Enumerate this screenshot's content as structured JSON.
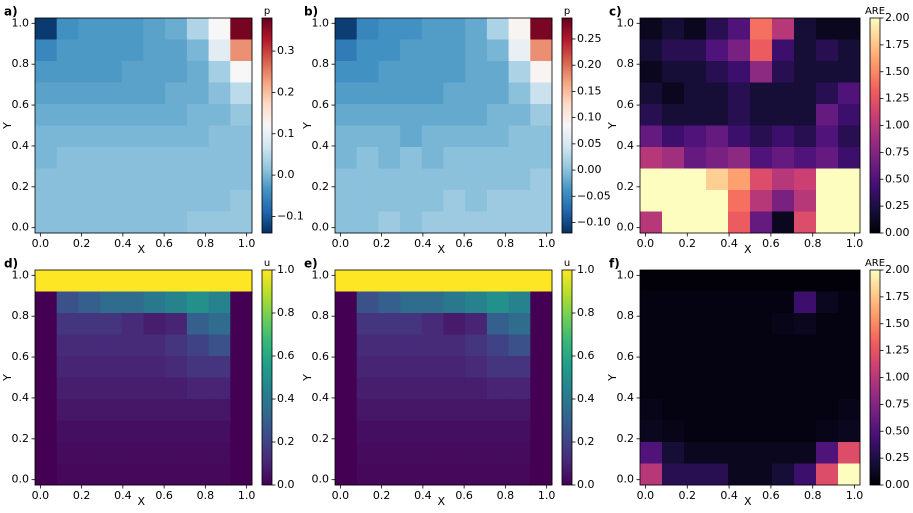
{
  "chart_data": [
    {
      "type": "heatmap",
      "label": "a)",
      "x_label": "X",
      "y_label": "Y",
      "xlim": [
        -0.026,
        1.026
      ],
      "ylim": [
        -0.026,
        1.026
      ],
      "xticks": [
        {
          "value": 0,
          "label": "0.0"
        },
        0.2,
        0.4,
        0.6,
        0.8,
        {
          "value": 1,
          "label": "1.0"
        }
      ],
      "yticks": [
        {
          "value": 0,
          "label": "0.0"
        },
        0.2,
        0.4,
        0.6,
        0.8,
        {
          "value": 1,
          "label": "1.0"
        }
      ],
      "colormap": [
        "#053061",
        "#2166ac",
        "#4393c3",
        "#92c5de",
        "#d1e5f0",
        "#f7f7f7",
        "#fddbc7",
        "#f4a582",
        "#d6604d",
        "#b2182b",
        "#67001f"
      ],
      "colorbar": {
        "label": "p",
        "lim": [
          -0.14,
          0.38
        ],
        "ticks": [
          {
            "value": -0.1,
            "label": "−0.1"
          },
          {
            "value": 0,
            "label": "0.0"
          },
          0.1,
          0.2,
          0.3
        ]
      },
      "z": [
        [
          -0.13,
          -0.04,
          -0.03,
          -0.03,
          -0.03,
          -0.02,
          -0.01,
          0.04,
          0.12,
          0.37
        ],
        [
          -0.05,
          -0.03,
          -0.03,
          -0.03,
          -0.03,
          -0.02,
          -0.02,
          0.0,
          0.09,
          0.24
        ],
        [
          -0.03,
          -0.03,
          -0.03,
          -0.03,
          -0.02,
          -0.02,
          -0.02,
          -0.01,
          0.03,
          0.12
        ],
        [
          -0.02,
          -0.02,
          -0.02,
          -0.02,
          -0.02,
          -0.02,
          -0.01,
          -0.01,
          0.01,
          0.05
        ],
        [
          -0.01,
          -0.01,
          -0.01,
          -0.01,
          -0.01,
          -0.01,
          -0.01,
          0.0,
          0.0,
          0.02
        ],
        [
          0.0,
          0.0,
          0.0,
          0.0,
          0.0,
          0.0,
          0.0,
          0.0,
          0.01,
          0.01
        ],
        [
          0.0,
          0.01,
          0.01,
          0.01,
          0.01,
          0.01,
          0.01,
          0.01,
          0.01,
          0.01
        ],
        [
          0.01,
          0.01,
          0.01,
          0.01,
          0.01,
          0.01,
          0.01,
          0.01,
          0.01,
          0.01
        ],
        [
          0.01,
          0.01,
          0.01,
          0.01,
          0.01,
          0.01,
          0.01,
          0.01,
          0.01,
          0.02
        ],
        [
          0.01,
          0.01,
          0.01,
          0.01,
          0.01,
          0.01,
          0.01,
          0.02,
          0.02,
          0.02
        ]
      ]
    },
    {
      "type": "heatmap",
      "label": "b)",
      "x_label": "X",
      "y_label": "Y",
      "xlim": [
        -0.026,
        1.026
      ],
      "ylim": [
        -0.026,
        1.026
      ],
      "xticks": [
        {
          "value": 0,
          "label": "0.0"
        },
        0.2,
        0.4,
        0.6,
        0.8,
        {
          "value": 1,
          "label": "1.0"
        }
      ],
      "yticks": [
        {
          "value": 0,
          "label": "0.0"
        },
        0.2,
        0.4,
        0.6,
        0.8,
        {
          "value": 1,
          "label": "1.0"
        }
      ],
      "colormap": [
        "#053061",
        "#2166ac",
        "#4393c3",
        "#92c5de",
        "#d1e5f0",
        "#f7f7f7",
        "#fddbc7",
        "#f4a582",
        "#d6604d",
        "#b2182b",
        "#67001f"
      ],
      "colorbar": {
        "label": "p",
        "lim": [
          -0.12,
          0.29
        ],
        "ticks": [
          {
            "value": -0.1,
            "label": "−0.10"
          },
          {
            "value": -0.05,
            "label": "−0.05"
          },
          {
            "value": 0,
            "label": "0.00"
          },
          0.05,
          {
            "value": 0.1,
            "label": "0.10"
          },
          0.15,
          {
            "value": 0.2,
            "label": "0.20"
          },
          0.25
        ]
      },
      "z": [
        [
          -0.11,
          -0.05,
          -0.04,
          -0.04,
          -0.03,
          -0.03,
          -0.02,
          0.02,
          0.09,
          0.28
        ],
        [
          -0.06,
          -0.04,
          -0.04,
          -0.03,
          -0.03,
          -0.03,
          -0.02,
          -0.01,
          0.07,
          0.18
        ],
        [
          -0.04,
          -0.04,
          -0.03,
          -0.03,
          -0.03,
          -0.03,
          -0.02,
          -0.02,
          0.02,
          0.09
        ],
        [
          -0.03,
          -0.03,
          -0.03,
          -0.03,
          -0.03,
          -0.02,
          -0.02,
          -0.02,
          0.0,
          0.04
        ],
        [
          -0.02,
          -0.02,
          -0.02,
          -0.02,
          -0.02,
          -0.02,
          -0.02,
          -0.01,
          -0.01,
          0.01
        ],
        [
          -0.01,
          -0.01,
          -0.01,
          -0.02,
          -0.01,
          -0.01,
          -0.01,
          -0.01,
          0.0,
          0.0
        ],
        [
          -0.01,
          0.0,
          -0.01,
          0.0,
          -0.01,
          0.0,
          0.0,
          0.0,
          0.0,
          0.0
        ],
        [
          0.0,
          0.0,
          0.0,
          0.0,
          0.0,
          0.0,
          0.0,
          0.0,
          0.0,
          0.01
        ],
        [
          0.0,
          0.0,
          0.0,
          0.0,
          0.0,
          0.01,
          0.0,
          0.01,
          0.01,
          0.01
        ],
        [
          0.0,
          0.0,
          0.01,
          0.0,
          0.01,
          0.01,
          0.01,
          0.01,
          0.01,
          0.01
        ]
      ]
    },
    {
      "type": "heatmap",
      "label": "c)",
      "x_label": "X",
      "y_label": "Y",
      "xlim": [
        -0.026,
        1.026
      ],
      "ylim": [
        -0.026,
        1.026
      ],
      "xticks": [
        {
          "value": 0,
          "label": "0.0"
        },
        0.2,
        0.4,
        0.6,
        0.8,
        {
          "value": 1,
          "label": "1.0"
        }
      ],
      "yticks": [
        {
          "value": 0,
          "label": "0.0"
        },
        0.2,
        0.4,
        0.6,
        0.8,
        {
          "value": 1,
          "label": "1.0"
        }
      ],
      "colormap": [
        "#000004",
        "#180f3d",
        "#440f76",
        "#721f81",
        "#9e2f7f",
        "#cd4071",
        "#f1605d",
        "#fd9668",
        "#feca8d",
        "#fcfdbf"
      ],
      "colorbar": {
        "label": "ARE",
        "lim": [
          0,
          2
        ],
        "ticks": [
          {
            "value": 0,
            "label": "0.00"
          },
          0.25,
          {
            "value": 0.5,
            "label": "0.50"
          },
          0.75,
          {
            "value": 1,
            "label": "1.00"
          },
          1.25,
          {
            "value": 1.5,
            "label": "1.50"
          },
          1.75,
          {
            "value": 2,
            "label": "2.00"
          }
        ]
      },
      "z": [
        [
          0.1,
          0.2,
          0.1,
          0.3,
          0.5,
          1.4,
          1.0,
          0.2,
          0.1,
          0.1
        ],
        [
          0.2,
          0.3,
          0.3,
          0.5,
          0.7,
          1.3,
          0.4,
          0.2,
          0.3,
          0.2
        ],
        [
          0.1,
          0.2,
          0.2,
          0.3,
          0.4,
          0.8,
          0.3,
          0.2,
          0.2,
          0.2
        ],
        [
          0.2,
          0.1,
          0.2,
          0.2,
          0.3,
          0.2,
          0.2,
          0.2,
          0.3,
          0.5
        ],
        [
          0.3,
          0.2,
          0.2,
          0.2,
          0.3,
          0.2,
          0.2,
          0.2,
          0.6,
          0.4
        ],
        [
          0.6,
          0.4,
          0.5,
          0.6,
          0.4,
          0.3,
          0.4,
          0.3,
          0.5,
          0.3
        ],
        [
          1.0,
          0.9,
          0.6,
          0.7,
          0.8,
          0.5,
          0.6,
          0.5,
          0.6,
          0.4
        ],
        [
          2.0,
          2.0,
          2.0,
          1.8,
          1.6,
          1.2,
          1.0,
          1.1,
          2.0,
          2.0
        ],
        [
          2.0,
          2.0,
          2.0,
          2.0,
          1.4,
          1.0,
          0.7,
          1.0,
          2.0,
          2.0
        ],
        [
          1.0,
          2.0,
          2.0,
          2.0,
          1.3,
          0.6,
          0.1,
          1.2,
          2.0,
          2.0
        ]
      ]
    },
    {
      "type": "heatmap",
      "label": "d)",
      "x_label": "X",
      "y_label": "Y",
      "xlim": [
        -0.026,
        1.026
      ],
      "ylim": [
        -0.026,
        1.026
      ],
      "xticks": [
        {
          "value": 0,
          "label": "0.0"
        },
        0.2,
        0.4,
        0.6,
        0.8,
        {
          "value": 1,
          "label": "1.0"
        }
      ],
      "yticks": [
        {
          "value": 0,
          "label": "0.0"
        },
        0.2,
        0.4,
        0.6,
        0.8,
        {
          "value": 1,
          "label": "1.0"
        }
      ],
      "colormap": [
        "#440154",
        "#482878",
        "#3e4989",
        "#31688e",
        "#26828e",
        "#1f9e89",
        "#35b779",
        "#6ece58",
        "#b5de2b",
        "#fde725"
      ],
      "colorbar": {
        "label": "u",
        "lim": [
          0,
          1
        ],
        "ticks": [
          {
            "value": 0,
            "label": "0.0"
          },
          0.2,
          0.4,
          0.6,
          0.8,
          {
            "value": 1,
            "label": "1.0"
          }
        ]
      },
      "z": [
        [
          1.0,
          1.0,
          1.0,
          1.0,
          1.0,
          1.0,
          1.0,
          1.0,
          1.0,
          1.0
        ],
        [
          0.0,
          0.25,
          0.3,
          0.35,
          0.35,
          0.4,
          0.45,
          0.5,
          0.45,
          0.0
        ],
        [
          0.0,
          0.15,
          0.15,
          0.15,
          0.12,
          0.08,
          0.1,
          0.3,
          0.35,
          0.0
        ],
        [
          0.0,
          0.12,
          0.12,
          0.12,
          0.12,
          0.12,
          0.15,
          0.2,
          0.25,
          0.0
        ],
        [
          0.0,
          0.1,
          0.1,
          0.1,
          0.1,
          0.1,
          0.12,
          0.15,
          0.15,
          0.0
        ],
        [
          0.0,
          0.08,
          0.08,
          0.08,
          0.08,
          0.08,
          0.08,
          0.1,
          0.1,
          0.0
        ],
        [
          0.0,
          0.06,
          0.06,
          0.06,
          0.06,
          0.06,
          0.06,
          0.06,
          0.06,
          0.0
        ],
        [
          0.0,
          0.04,
          0.04,
          0.04,
          0.04,
          0.04,
          0.04,
          0.04,
          0.04,
          0.0
        ],
        [
          0.0,
          0.03,
          0.03,
          0.03,
          0.03,
          0.03,
          0.03,
          0.03,
          0.03,
          0.0
        ],
        [
          0.0,
          0.02,
          0.02,
          0.02,
          0.02,
          0.02,
          0.02,
          0.02,
          0.02,
          0.0
        ]
      ]
    },
    {
      "type": "heatmap",
      "label": "e)",
      "x_label": "X",
      "y_label": "Y",
      "xlim": [
        -0.026,
        1.026
      ],
      "ylim": [
        -0.026,
        1.026
      ],
      "xticks": [
        {
          "value": 0,
          "label": "0.0"
        },
        0.2,
        0.4,
        0.6,
        0.8,
        {
          "value": 1,
          "label": "1.0"
        }
      ],
      "yticks": [
        {
          "value": 0,
          "label": "0.0"
        },
        0.2,
        0.4,
        0.6,
        0.8,
        {
          "value": 1,
          "label": "1.0"
        }
      ],
      "colormap": [
        "#440154",
        "#482878",
        "#3e4989",
        "#31688e",
        "#26828e",
        "#1f9e89",
        "#35b779",
        "#6ece58",
        "#b5de2b",
        "#fde725"
      ],
      "colorbar": {
        "label": "u",
        "lim": [
          0,
          1
        ],
        "ticks": [
          {
            "value": 0,
            "label": "0.0"
          },
          0.2,
          0.4,
          0.6,
          0.8,
          {
            "value": 1,
            "label": "1.0"
          }
        ]
      },
      "z": [
        [
          1.0,
          1.0,
          1.0,
          1.0,
          1.0,
          1.0,
          1.0,
          1.0,
          1.0,
          1.0
        ],
        [
          0.0,
          0.25,
          0.3,
          0.35,
          0.35,
          0.4,
          0.45,
          0.5,
          0.45,
          0.0
        ],
        [
          0.0,
          0.15,
          0.15,
          0.15,
          0.12,
          0.07,
          0.1,
          0.3,
          0.35,
          0.0
        ],
        [
          0.0,
          0.12,
          0.12,
          0.12,
          0.12,
          0.12,
          0.15,
          0.2,
          0.25,
          0.0
        ],
        [
          0.0,
          0.1,
          0.1,
          0.1,
          0.1,
          0.1,
          0.12,
          0.15,
          0.15,
          0.0
        ],
        [
          0.0,
          0.08,
          0.08,
          0.08,
          0.08,
          0.08,
          0.08,
          0.1,
          0.1,
          0.0
        ],
        [
          0.0,
          0.06,
          0.06,
          0.06,
          0.06,
          0.06,
          0.06,
          0.06,
          0.06,
          0.0
        ],
        [
          0.0,
          0.04,
          0.04,
          0.04,
          0.04,
          0.04,
          0.04,
          0.04,
          0.04,
          0.0
        ],
        [
          0.0,
          0.03,
          0.03,
          0.03,
          0.03,
          0.03,
          0.03,
          0.03,
          0.03,
          0.0
        ],
        [
          0.0,
          0.02,
          0.02,
          0.02,
          0.02,
          0.02,
          0.02,
          0.02,
          0.02,
          0.0
        ]
      ]
    },
    {
      "type": "heatmap",
      "label": "f)",
      "x_label": "X",
      "y_label": "Y",
      "xlim": [
        -0.026,
        1.026
      ],
      "ylim": [
        -0.026,
        1.026
      ],
      "xticks": [
        {
          "value": 0,
          "label": "0.0"
        },
        0.2,
        0.4,
        0.6,
        0.8,
        {
          "value": 1,
          "label": "1.0"
        }
      ],
      "yticks": [
        {
          "value": 0,
          "label": "0.0"
        },
        0.2,
        0.4,
        0.6,
        0.8,
        {
          "value": 1,
          "label": "1.0"
        }
      ],
      "colormap": [
        "#000004",
        "#180f3d",
        "#440f76",
        "#721f81",
        "#9e2f7f",
        "#cd4071",
        "#f1605d",
        "#fd9668",
        "#feca8d",
        "#fcfdbf"
      ],
      "colorbar": {
        "label": "ARE",
        "lim": [
          0,
          2
        ],
        "ticks": [
          {
            "value": 0,
            "label": "0.00"
          },
          0.25,
          {
            "value": 0.5,
            "label": "0.50"
          },
          0.75,
          {
            "value": 1,
            "label": "1.00"
          },
          1.25,
          {
            "value": 1.5,
            "label": "1.50"
          },
          1.75,
          {
            "value": 2,
            "label": "2.00"
          }
        ]
      },
      "z": [
        [
          0.02,
          0.02,
          0.02,
          0.02,
          0.02,
          0.02,
          0.02,
          0.02,
          0.02,
          0.02
        ],
        [
          0.05,
          0.05,
          0.05,
          0.05,
          0.05,
          0.05,
          0.05,
          0.4,
          0.1,
          0.05
        ],
        [
          0.05,
          0.05,
          0.05,
          0.05,
          0.05,
          0.05,
          0.08,
          0.1,
          0.05,
          0.05
        ],
        [
          0.05,
          0.05,
          0.05,
          0.05,
          0.05,
          0.05,
          0.05,
          0.05,
          0.05,
          0.05
        ],
        [
          0.05,
          0.05,
          0.05,
          0.05,
          0.05,
          0.05,
          0.05,
          0.05,
          0.05,
          0.05
        ],
        [
          0.05,
          0.05,
          0.05,
          0.05,
          0.05,
          0.05,
          0.05,
          0.05,
          0.05,
          0.05
        ],
        [
          0.08,
          0.05,
          0.05,
          0.05,
          0.05,
          0.05,
          0.05,
          0.05,
          0.05,
          0.08
        ],
        [
          0.1,
          0.08,
          0.05,
          0.05,
          0.05,
          0.05,
          0.05,
          0.05,
          0.08,
          0.1
        ],
        [
          0.5,
          0.2,
          0.1,
          0.1,
          0.1,
          0.1,
          0.1,
          0.1,
          0.5,
          1.2
        ],
        [
          1.0,
          0.3,
          0.3,
          0.3,
          0.1,
          0.1,
          0.2,
          0.4,
          1.2,
          2.0
        ]
      ]
    }
  ]
}
